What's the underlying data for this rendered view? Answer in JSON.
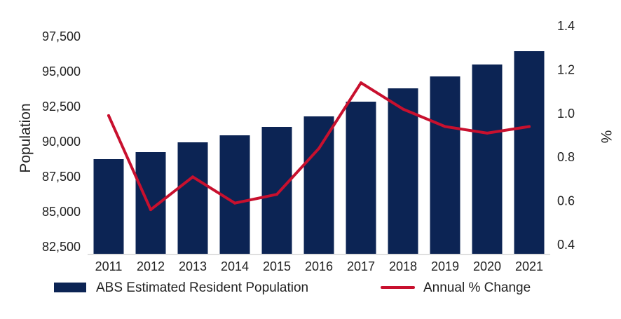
{
  "chart_data": {
    "type": "bar+line",
    "categories": [
      "2011",
      "2012",
      "2013",
      "2014",
      "2015",
      "2016",
      "2017",
      "2018",
      "2019",
      "2020",
      "2021"
    ],
    "series": [
      {
        "name": "ABS Estimated Resident Population",
        "type": "bar",
        "axis": "left",
        "color": "#0c2454",
        "values": [
          88750,
          89250,
          89950,
          90450,
          91050,
          91800,
          92850,
          93800,
          94650,
          95500,
          96450
        ]
      },
      {
        "name": "Annual % Change",
        "type": "line",
        "axis": "right",
        "color": "#c8102e",
        "values": [
          0.99,
          0.56,
          0.71,
          0.59,
          0.63,
          0.84,
          1.14,
          1.02,
          0.94,
          0.91,
          0.94
        ]
      }
    ],
    "y_left": {
      "label": "Population",
      "min": 82000,
      "max": 98000,
      "ticks": [
        82500,
        85000,
        87500,
        90000,
        92500,
        95000,
        97500
      ],
      "tick_labels": [
        "82,500",
        "85,000",
        "87,500",
        "90,000",
        "92,500",
        "95,000",
        "97,500"
      ]
    },
    "y_right": {
      "label": "%",
      "min": 0.4,
      "max": 1.4,
      "ticks": [
        0.4,
        0.6,
        0.8,
        1.0,
        1.2,
        1.4
      ],
      "tick_labels": [
        "0.4",
        "0.6",
        "0.8",
        "1.0",
        "1.2",
        "1.4"
      ]
    },
    "grid": false,
    "legend": {
      "position": "bottom",
      "bar_label": "ABS Estimated Resident Population",
      "line_label": "Annual % Change"
    }
  }
}
